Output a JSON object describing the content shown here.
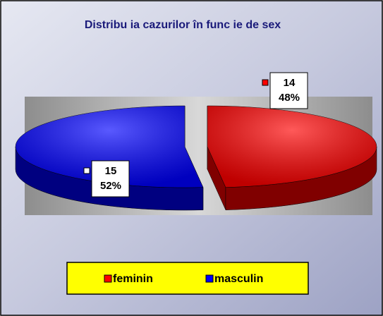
{
  "chart_data": {
    "type": "pie",
    "title": "Distribu ia cazurilor în func ie de sex",
    "categories": [
      "feminin",
      "masculin"
    ],
    "values": [
      14,
      15
    ],
    "percentages": [
      48,
      52
    ],
    "percentage_labels": [
      "48%",
      "52%"
    ],
    "colors": [
      "#ff0000",
      "#0000ff"
    ],
    "legend": "bottom"
  }
}
